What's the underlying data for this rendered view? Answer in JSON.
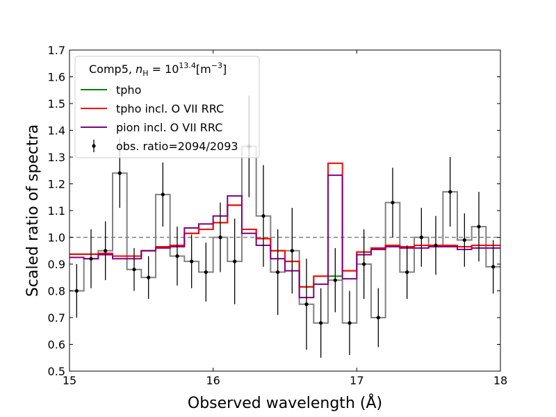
{
  "chart_data": {
    "type": "line",
    "title": "",
    "xlabel": "Observed wavelength (Å)",
    "ylabel": "Scaled ratio of spectra",
    "xlim": [
      15,
      18
    ],
    "ylim": [
      0.5,
      1.7
    ],
    "xticks": [
      15,
      16,
      17,
      18
    ],
    "yticks": [
      0.5,
      0.6,
      0.7,
      0.8,
      0.9,
      1.0,
      1.1,
      1.2,
      1.3,
      1.4,
      1.5,
      1.6,
      1.7
    ],
    "reference_line": 1.0,
    "legend": {
      "position": "top-left",
      "title_prefix": "Comp5, ",
      "title_n": "n",
      "title_sub": "H",
      "title_eq": " = 10",
      "title_exp": "13.4",
      "title_unit": "[m",
      "title_unit_exp": "−3",
      "title_unit_close": "]"
    },
    "bin_edges": [
      15.0,
      15.1,
      15.2,
      15.3,
      15.4,
      15.5,
      15.6,
      15.7,
      15.8,
      15.9,
      16.0,
      16.1,
      16.2,
      16.3,
      16.4,
      16.5,
      16.6,
      16.7,
      16.8,
      16.9,
      17.0,
      17.1,
      17.2,
      17.3,
      17.4,
      17.5,
      17.6,
      17.7,
      17.8,
      17.9,
      18.0
    ],
    "series": [
      {
        "name": "obs. ratio=2094/2093",
        "kind": "observed",
        "color": "#000000",
        "step_color": "#808080",
        "x": [
          15.05,
          15.15,
          15.25,
          15.35,
          15.45,
          15.55,
          15.65,
          15.75,
          15.85,
          15.95,
          16.05,
          16.15,
          16.25,
          16.35,
          16.45,
          16.55,
          16.65,
          16.75,
          16.85,
          16.95,
          17.05,
          17.15,
          17.25,
          17.35,
          17.45,
          17.55,
          17.65,
          17.75,
          17.85,
          17.95
        ],
        "y": [
          0.8,
          0.92,
          0.95,
          1.24,
          0.88,
          0.85,
          1.16,
          0.93,
          0.91,
          0.87,
          1.0,
          0.91,
          1.34,
          1.08,
          0.87,
          0.95,
          0.75,
          0.68,
          0.84,
          0.68,
          0.9,
          0.7,
          1.13,
          0.87,
          1.0,
          0.97,
          1.17,
          0.99,
          1.04,
          0.89
        ],
        "yerr": [
          0.1,
          0.11,
          0.11,
          0.13,
          0.08,
          0.08,
          0.12,
          0.11,
          0.1,
          0.11,
          0.13,
          0.16,
          0.19,
          0.19,
          0.16,
          0.16,
          0.17,
          0.13,
          0.12,
          0.12,
          0.13,
          0.11,
          0.13,
          0.1,
          0.11,
          0.11,
          0.13,
          0.1,
          0.13,
          0.1
        ]
      },
      {
        "name": "tpho",
        "kind": "model",
        "color": "#008000",
        "values": [
          0.937,
          0.937,
          0.94,
          0.93,
          0.93,
          0.95,
          0.965,
          0.97,
          1.015,
          1.03,
          1.055,
          1.12,
          1.03,
          0.995,
          0.95,
          0.91,
          0.815,
          0.855,
          0.855,
          0.875,
          0.945,
          0.96,
          0.97,
          0.965,
          0.97,
          0.97,
          0.97,
          0.965,
          0.97,
          0.97
        ]
      },
      {
        "name": "tpho incl. O VII RRC",
        "kind": "model",
        "color": "#ff0000",
        "values": [
          0.937,
          0.937,
          0.94,
          0.93,
          0.93,
          0.95,
          0.965,
          0.97,
          1.015,
          1.03,
          1.055,
          1.12,
          1.03,
          0.995,
          0.95,
          0.91,
          0.815,
          0.855,
          1.277,
          0.875,
          0.945,
          0.96,
          0.97,
          0.965,
          0.97,
          0.97,
          0.97,
          0.965,
          0.97,
          0.97
        ]
      },
      {
        "name": "pion incl. O VII RRC",
        "kind": "model",
        "color": "#800080",
        "values": [
          0.925,
          0.92,
          0.935,
          0.92,
          0.92,
          0.95,
          0.96,
          0.965,
          1.035,
          1.05,
          1.08,
          1.155,
          1.015,
          0.97,
          0.92,
          0.875,
          0.775,
          0.825,
          1.232,
          0.845,
          0.935,
          0.955,
          0.965,
          0.96,
          0.96,
          0.965,
          0.965,
          0.955,
          0.96,
          0.96
        ]
      }
    ]
  }
}
